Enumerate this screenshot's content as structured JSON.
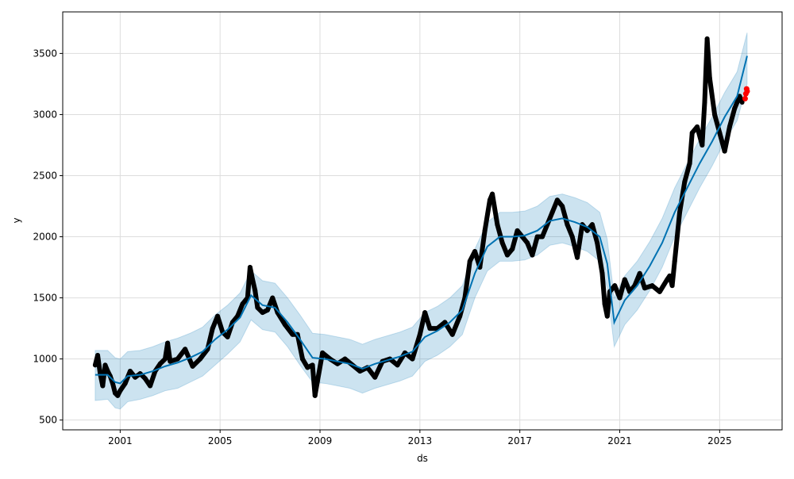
{
  "chart_data": {
    "type": "line",
    "title": "",
    "xlabel": "ds",
    "ylabel": "y",
    "xlim": [
      1998.7,
      2027.5
    ],
    "ylim": [
      420,
      3840
    ],
    "grid": true,
    "x_ticks": [
      2001,
      2005,
      2009,
      2013,
      2017,
      2021,
      2025
    ],
    "x_tick_labels": [
      "2001",
      "2005",
      "2009",
      "2013",
      "2017",
      "2021",
      "2025"
    ],
    "y_ticks": [
      500,
      1000,
      1500,
      2000,
      2500,
      3000,
      3500
    ],
    "y_tick_labels": [
      "500",
      "1000",
      "1500",
      "2000",
      "2500",
      "3000",
      "3500"
    ],
    "colors": {
      "forecast": "#0072B2",
      "interval": "#0072B2",
      "observed": "#000000",
      "highlight": "#ff0000",
      "grid": "#dddddd"
    },
    "forecast": {
      "x": [
        2000.0,
        2000.5,
        2000.8,
        2001.0,
        2001.3,
        2001.8,
        2002.3,
        2002.8,
        2003.3,
        2003.8,
        2004.3,
        2004.8,
        2005.3,
        2005.8,
        2006.24,
        2006.7,
        2007.2,
        2007.7,
        2008.2,
        2008.7,
        2009.2,
        2009.7,
        2010.2,
        2010.7,
        2011.2,
        2011.7,
        2012.2,
        2012.7,
        2013.2,
        2013.7,
        2014.2,
        2014.7,
        2015.2,
        2015.7,
        2016.2,
        2016.7,
        2017.2,
        2017.7,
        2018.2,
        2018.7,
        2019.2,
        2019.7,
        2020.2,
        2020.5,
        2020.78,
        2021.2,
        2021.7,
        2022.2,
        2022.7,
        2023.2,
        2023.7,
        2024.2,
        2024.7,
        2025.2,
        2025.7,
        2026.1
      ],
      "yhat": [
        870,
        870,
        810,
        800,
        860,
        870,
        900,
        940,
        970,
        1010,
        1060,
        1160,
        1240,
        1340,
        1520,
        1440,
        1420,
        1300,
        1160,
        1010,
        1000,
        980,
        960,
        920,
        960,
        990,
        1020,
        1060,
        1180,
        1230,
        1300,
        1400,
        1700,
        1920,
        2000,
        2000,
        2010,
        2050,
        2130,
        2150,
        2120,
        2080,
        2000,
        1780,
        1300,
        1480,
        1600,
        1760,
        1950,
        2200,
        2400,
        2600,
        2780,
        2980,
        3150,
        3480
      ],
      "yhat_lower": [
        660,
        670,
        600,
        590,
        650,
        670,
        700,
        740,
        760,
        810,
        860,
        950,
        1040,
        1140,
        1320,
        1240,
        1220,
        1100,
        950,
        810,
        800,
        780,
        760,
        720,
        760,
        790,
        820,
        860,
        980,
        1030,
        1100,
        1200,
        1500,
        1720,
        1800,
        1800,
        1810,
        1850,
        1930,
        1950,
        1920,
        1880,
        1800,
        1580,
        1100,
        1280,
        1400,
        1560,
        1750,
        2000,
        2200,
        2400,
        2580,
        2780,
        2950,
        3250
      ],
      "yhat_upper": [
        1070,
        1070,
        1010,
        1000,
        1060,
        1070,
        1100,
        1140,
        1170,
        1210,
        1260,
        1360,
        1440,
        1540,
        1720,
        1640,
        1620,
        1500,
        1360,
        1210,
        1200,
        1180,
        1160,
        1120,
        1160,
        1190,
        1220,
        1260,
        1380,
        1430,
        1500,
        1600,
        1900,
        2120,
        2200,
        2200,
        2210,
        2250,
        2330,
        2350,
        2320,
        2280,
        2200,
        1980,
        1500,
        1680,
        1800,
        1960,
        2150,
        2400,
        2600,
        2800,
        2980,
        3180,
        3350,
        3670
      ]
    },
    "observed": {
      "x": [
        2000.0,
        2000.1,
        2000.2,
        2000.3,
        2000.4,
        2000.5,
        2000.6,
        2000.7,
        2000.8,
        2000.9,
        2001.0,
        2001.2,
        2001.4,
        2001.6,
        2001.8,
        2002.0,
        2002.2,
        2002.4,
        2002.6,
        2002.8,
        2002.9,
        2003.0,
        2003.3,
        2003.6,
        2003.9,
        2004.2,
        2004.5,
        2004.7,
        2004.9,
        2005.1,
        2005.3,
        2005.5,
        2005.7,
        2005.9,
        2006.1,
        2006.2,
        2006.3,
        2006.4,
        2006.5,
        2006.7,
        2006.9,
        2007.1,
        2007.3,
        2007.6,
        2007.9,
        2008.1,
        2008.3,
        2008.5,
        2008.7,
        2008.8,
        2008.9,
        2009.1,
        2009.4,
        2009.7,
        2010.0,
        2010.3,
        2010.6,
        2010.9,
        2011.2,
        2011.5,
        2011.8,
        2012.1,
        2012.4,
        2012.7,
        2013.0,
        2013.2,
        2013.4,
        2013.7,
        2014.0,
        2014.3,
        2014.6,
        2014.8,
        2015.0,
        2015.2,
        2015.4,
        2015.6,
        2015.8,
        2015.9,
        2016.1,
        2016.3,
        2016.5,
        2016.7,
        2016.9,
        2017.1,
        2017.3,
        2017.5,
        2017.7,
        2017.9,
        2018.1,
        2018.3,
        2018.5,
        2018.7,
        2018.9,
        2019.1,
        2019.3,
        2019.5,
        2019.7,
        2019.9,
        2020.1,
        2020.3,
        2020.4,
        2020.5,
        2020.6,
        2020.8,
        2021.0,
        2021.2,
        2021.4,
        2021.6,
        2021.8,
        2022.0,
        2022.3,
        2022.6,
        2022.9,
        2023.0,
        2023.1,
        2023.2,
        2023.4,
        2023.6,
        2023.8,
        2023.9,
        2024.1,
        2024.3,
        2024.4,
        2024.5,
        2024.6,
        2024.8,
        2025.0,
        2025.2,
        2025.4,
        2025.6,
        2025.8,
        2025.9
      ],
      "y": [
        950,
        1030,
        880,
        780,
        950,
        900,
        860,
        800,
        720,
        700,
        740,
        800,
        900,
        850,
        880,
        840,
        780,
        900,
        960,
        1000,
        1130,
        980,
        1000,
        1080,
        940,
        1000,
        1080,
        1250,
        1350,
        1220,
        1180,
        1300,
        1350,
        1450,
        1500,
        1750,
        1650,
        1560,
        1420,
        1380,
        1400,
        1500,
        1380,
        1280,
        1200,
        1200,
        1000,
        930,
        950,
        700,
        820,
        1050,
        1000,
        960,
        1000,
        950,
        900,
        930,
        850,
        980,
        1000,
        950,
        1050,
        1000,
        1200,
        1380,
        1250,
        1250,
        1300,
        1200,
        1350,
        1500,
        1800,
        1880,
        1750,
        2050,
        2300,
        2350,
        2100,
        1950,
        1850,
        1900,
        2050,
        2000,
        1950,
        1850,
        2000,
        2000,
        2100,
        2200,
        2300,
        2250,
        2100,
        2000,
        1830,
        2100,
        2050,
        2100,
        1950,
        1700,
        1450,
        1350,
        1550,
        1600,
        1500,
        1650,
        1550,
        1600,
        1700,
        1580,
        1600,
        1550,
        1650,
        1680,
        1600,
        1800,
        2200,
        2450,
        2600,
        2850,
        2900,
        2750,
        3100,
        3620,
        3300,
        3000,
        2850,
        2700,
        2900,
        3050,
        3150,
        3100
      ]
    },
    "highlighted": {
      "x": [
        2026.02,
        2026.05,
        2026.08,
        2026.1
      ],
      "y": [
        3130,
        3170,
        3210,
        3190
      ]
    }
  }
}
